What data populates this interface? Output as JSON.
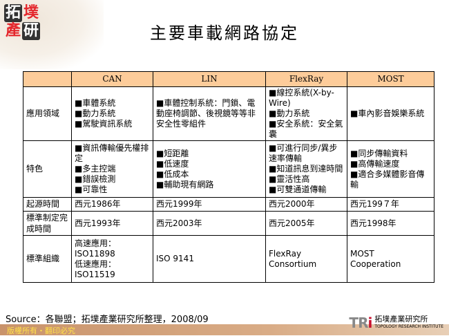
{
  "logo": {
    "chars": [
      "拓",
      "墣",
      "產",
      "研"
    ]
  },
  "title": "主要車載網路協定",
  "table": {
    "headers": [
      "",
      "CAN",
      "LIN",
      "FlexRay",
      "MOST"
    ],
    "rows": [
      {
        "label": "應用領域",
        "cells": [
          [
            "■車體系統",
            "■動力系統",
            "■駕駛資訊系統"
          ],
          [
            "■車體控制系統：門鎖、電動座椅調節、後視鏡等等非安全性零組件"
          ],
          [
            "■線控系統(X-by-Wire)",
            "■動力系統",
            "■安全系統：安全氣囊"
          ],
          [
            "■車內影音娛樂系統"
          ]
        ]
      },
      {
        "label": "特色",
        "cells": [
          [
            "■資訊傳輸優先權排定",
            "■多主控端",
            "■錯誤檢測",
            "■可靠性"
          ],
          [
            "■短距離",
            "■低速度",
            "■低成本",
            "■輔助現有網路"
          ],
          [
            "■可進行同步/異步速率傳輸",
            "■知道訊息到達時間",
            "■靈活性高",
            "■可雙通道傳輸"
          ],
          [
            "■同步傳輸資料",
            "■高傳輸速度",
            "■適合多媒體影音傳輸"
          ]
        ]
      },
      {
        "label": "起源時間",
        "cells": [
          [
            "西元1986年"
          ],
          [
            "西元1999年"
          ],
          [
            "西元2000年"
          ],
          [
            "西元199７年"
          ]
        ]
      },
      {
        "label": "標準制定完成時間",
        "cells": [
          [
            "西元1993年"
          ],
          [
            "西元2003年"
          ],
          [
            "西元2005年"
          ],
          [
            "西元1998年"
          ]
        ]
      },
      {
        "label": "標準組織",
        "cells": [
          [
            "高速應用：",
            "ISO11898",
            "低速應用：",
            "ISO11519"
          ],
          [
            "ISO 9141"
          ],
          [
            "FlexRay",
            "Consortium"
          ],
          [
            "MOST",
            "Cooperation"
          ]
        ]
      }
    ]
  },
  "source": "Source：各聯盟；拓墣產業研究所整理，2008/09",
  "footer": "版權所有・翻印必究",
  "brand": {
    "mark": "TR",
    "mark_i": "i",
    "name": "拓墣產業研究所",
    "sub": "TOPOLOGY RESEARCH INSTITUTE"
  },
  "colors": {
    "header_bg": "#fdcc9a",
    "footer_text": "#ffe14a",
    "brand_red": "#c8102e"
  }
}
